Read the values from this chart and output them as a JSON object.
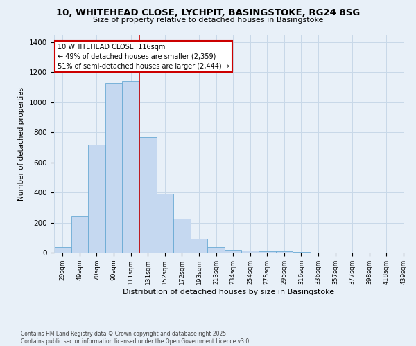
{
  "title1": "10, WHITEHEAD CLOSE, LYCHPIT, BASINGSTOKE, RG24 8SG",
  "title2": "Size of property relative to detached houses in Basingstoke",
  "xlabel": "Distribution of detached houses by size in Basingstoke",
  "ylabel": "Number of detached properties",
  "footnote1": "Contains HM Land Registry data © Crown copyright and database right 2025.",
  "footnote2": "Contains public sector information licensed under the Open Government Licence v3.0.",
  "bins": [
    "29sqm",
    "49sqm",
    "70sqm",
    "90sqm",
    "111sqm",
    "131sqm",
    "152sqm",
    "172sqm",
    "193sqm",
    "213sqm",
    "234sqm",
    "254sqm",
    "275sqm",
    "295sqm",
    "316sqm",
    "336sqm",
    "357sqm",
    "377sqm",
    "398sqm",
    "418sqm",
    "439sqm"
  ],
  "values": [
    35,
    245,
    720,
    1130,
    1140,
    770,
    390,
    225,
    90,
    35,
    20,
    15,
    10,
    8,
    5,
    0,
    0,
    0,
    0,
    0
  ],
  "bar_color": "#c5d8f0",
  "bar_edge_color": "#6aaad4",
  "grid_color": "#c8d8e8",
  "background_color": "#e8f0f8",
  "vline_x": 4.5,
  "vline_color": "#cc0000",
  "annotation_text": "10 WHITEHEAD CLOSE: 116sqm\n← 49% of detached houses are smaller (2,359)\n51% of semi-detached houses are larger (2,444) →",
  "annotation_box_color": "#ffffff",
  "annotation_box_edge": "#cc0000",
  "ylim": [
    0,
    1450
  ],
  "yticks": [
    0,
    200,
    400,
    600,
    800,
    1000,
    1200,
    1400
  ]
}
